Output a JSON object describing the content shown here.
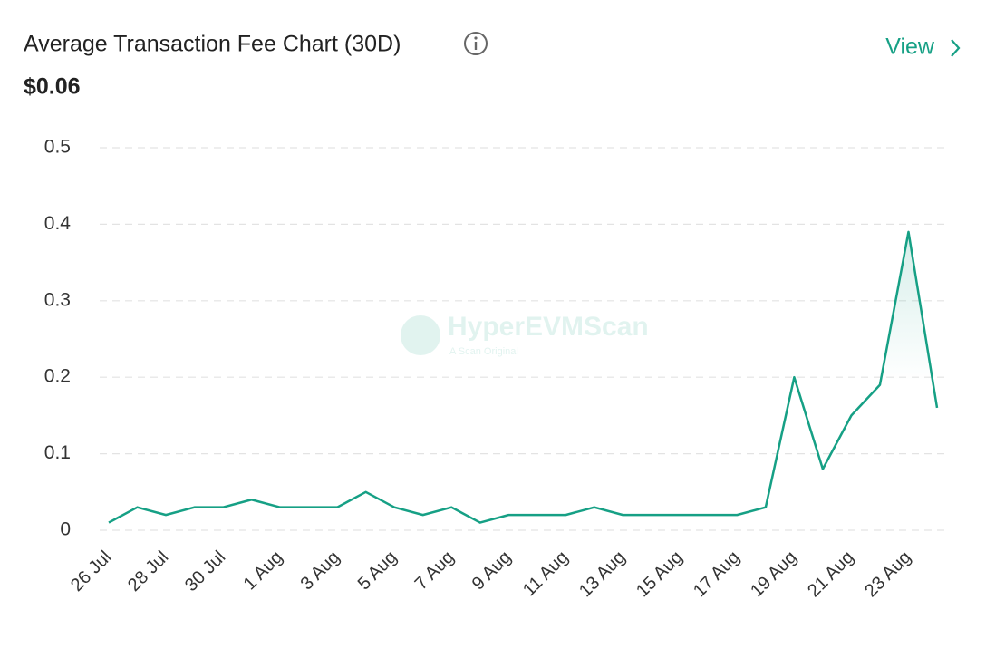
{
  "header": {
    "title": "Average Transaction Fee Chart (30D)",
    "value": "$0.06",
    "link": "View"
  },
  "watermark": {
    "name": "HyperEVMScan",
    "tagline": "A Scan Original"
  },
  "chart_data": {
    "type": "line",
    "categories": [
      "26 Jul",
      null,
      "28 Jul",
      null,
      "30 Jul",
      null,
      "1 Aug",
      null,
      "3 Aug",
      null,
      "5 Aug",
      null,
      "7 Aug",
      null,
      "9 Aug",
      null,
      "11 Aug",
      null,
      "13 Aug",
      null,
      "15 Aug",
      null,
      "17 Aug",
      null,
      "19 Aug",
      null,
      "21 Aug",
      null,
      "23 Aug",
      null
    ],
    "series": [
      {
        "name": "Average Transaction Fee",
        "color": "#16a085",
        "values": [
          0.01,
          0.03,
          0.02,
          0.03,
          0.03,
          0.04,
          0.03,
          0.03,
          0.03,
          0.05,
          0.03,
          0.02,
          0.03,
          0.01,
          0.02,
          0.02,
          0.02,
          0.03,
          0.02,
          0.02,
          0.02,
          0.02,
          0.02,
          0.03,
          0.2,
          0.08,
          0.15,
          0.19,
          0.39,
          0.16
        ]
      }
    ],
    "ylim": [
      0,
      0.5
    ],
    "yticks": [
      0,
      0.1,
      0.2,
      0.3,
      0.4,
      0.5
    ],
    "grid": true
  }
}
